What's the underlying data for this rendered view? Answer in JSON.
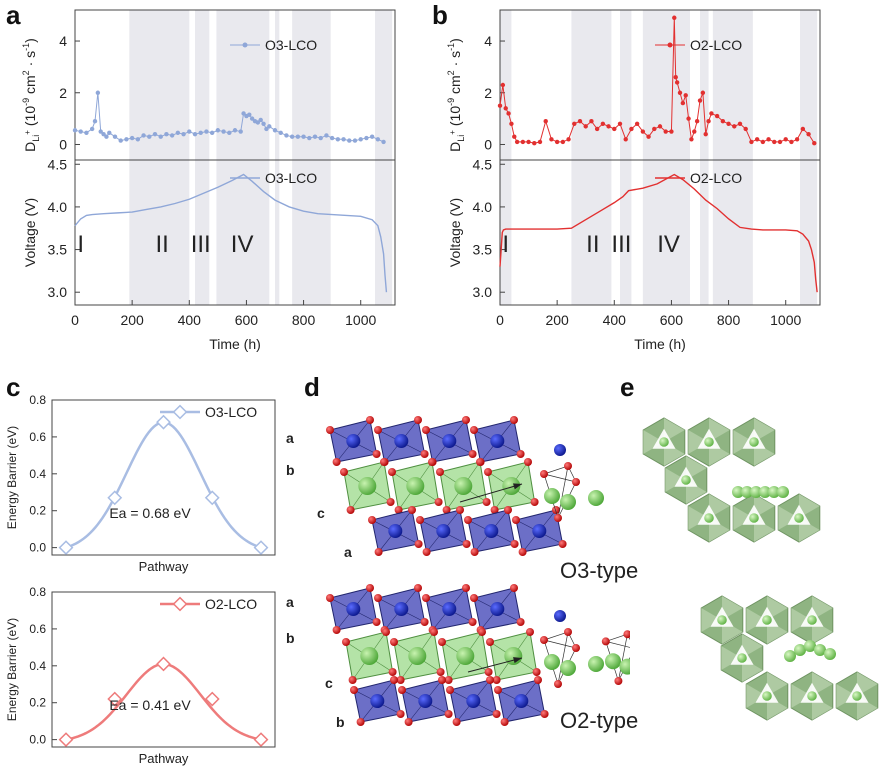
{
  "panels": {
    "a": "a",
    "b": "b",
    "c": "c",
    "d": "d",
    "e": "e"
  },
  "colors": {
    "o3": "#8fa7d8",
    "o2": "#e23030",
    "c_o3": "#a9bde3",
    "c_o2": "#ee7b7b",
    "band": "#e9e9ee",
    "axis": "#444444"
  },
  "chart_data": [
    {
      "id": "a-top",
      "type": "line",
      "legend": "O3-LCO",
      "ylabel_main": "D",
      "ylabel_sub": "Li",
      "ylabel_sup": "+",
      "ylabel_units": "(10",
      "ylabel_exp": "-9",
      "ylabel_rest": "cm",
      "ylabel_sq": "2",
      "ylabel_dot": "· s",
      "ylabel_neg": "-1",
      "ylabel_close": ")",
      "yticks": [
        "0",
        "2",
        "4"
      ],
      "ylim": [
        -0.6,
        5.2
      ],
      "x": [
        0,
        20,
        40,
        60,
        70,
        80,
        90,
        100,
        110,
        120,
        140,
        160,
        180,
        200,
        220,
        240,
        260,
        280,
        300,
        320,
        340,
        360,
        380,
        400,
        420,
        440,
        460,
        480,
        500,
        520,
        540,
        560,
        580,
        590,
        600,
        610,
        620,
        630,
        640,
        650,
        660,
        670,
        680,
        700,
        720,
        740,
        760,
        780,
        800,
        820,
        840,
        860,
        880,
        900,
        920,
        940,
        960,
        980,
        1000,
        1020,
        1040,
        1060,
        1080
      ],
      "y": [
        0.55,
        0.5,
        0.45,
        0.6,
        0.9,
        2.0,
        0.5,
        0.4,
        0.3,
        0.45,
        0.3,
        0.15,
        0.2,
        0.25,
        0.2,
        0.35,
        0.3,
        0.4,
        0.3,
        0.4,
        0.35,
        0.45,
        0.4,
        0.5,
        0.4,
        0.45,
        0.5,
        0.45,
        0.55,
        0.5,
        0.45,
        0.55,
        0.5,
        1.2,
        1.1,
        1.15,
        1.0,
        0.9,
        0.85,
        0.95,
        0.8,
        0.6,
        0.7,
        0.55,
        0.45,
        0.35,
        0.3,
        0.3,
        0.3,
        0.25,
        0.3,
        0.25,
        0.35,
        0.25,
        0.2,
        0.2,
        0.15,
        0.15,
        0.2,
        0.25,
        0.3,
        0.2,
        0.1
      ]
    },
    {
      "id": "a-bottom",
      "type": "line",
      "legend": "O3-LCO",
      "ylabel": "Voltage (V)",
      "xlabel": "Time (h)",
      "yticks": [
        "3.0",
        "3.5",
        "4.0",
        "4.5"
      ],
      "xticks": [
        "0",
        "200",
        "400",
        "600",
        "800",
        "1000"
      ],
      "xlim": [
        0,
        1120
      ],
      "ylim": [
        2.85,
        4.55
      ],
      "bands": [
        [
          190,
          400
        ],
        [
          420,
          470
        ],
        [
          495,
          680
        ],
        [
          700,
          715
        ],
        [
          760,
          895
        ],
        [
          1050,
          1110
        ]
      ],
      "stages": [
        {
          "label": "I",
          "x": 20
        },
        {
          "label": "II",
          "x": 305
        },
        {
          "label": "III",
          "x": 440
        },
        {
          "label": "IV",
          "x": 585
        }
      ],
      "x": [
        0,
        20,
        40,
        60,
        100,
        150,
        200,
        250,
        300,
        350,
        400,
        450,
        500,
        550,
        590,
        620,
        660,
        700,
        750,
        800,
        850,
        900,
        950,
        1000,
        1040,
        1060,
        1070,
        1080,
        1085,
        1090
      ],
      "y": [
        3.78,
        3.86,
        3.9,
        3.91,
        3.92,
        3.93,
        3.94,
        3.97,
        4.0,
        4.04,
        4.09,
        4.16,
        4.23,
        4.31,
        4.38,
        4.3,
        4.18,
        4.08,
        4.0,
        3.95,
        3.92,
        3.91,
        3.9,
        3.89,
        3.85,
        3.78,
        3.65,
        3.45,
        3.2,
        3.0
      ]
    },
    {
      "id": "b-top",
      "type": "line",
      "legend": "O2-LCO",
      "ylabel_main": "D",
      "ylabel_sub": "Li",
      "ylabel_sup": "+",
      "ylabel_units": "(10",
      "ylabel_exp": "-9",
      "ylabel_rest": "cm",
      "ylabel_sq": "2",
      "ylabel_dot": "· s",
      "ylabel_neg": "-1",
      "ylabel_close": ")",
      "yticks": [
        "0",
        "2",
        "4"
      ],
      "ylim": [
        -0.6,
        5.2
      ],
      "x": [
        0,
        10,
        20,
        30,
        40,
        50,
        60,
        80,
        100,
        120,
        140,
        160,
        180,
        200,
        220,
        240,
        260,
        280,
        300,
        320,
        340,
        360,
        380,
        400,
        420,
        440,
        460,
        480,
        500,
        520,
        540,
        560,
        580,
        600,
        610,
        615,
        620,
        630,
        640,
        650,
        660,
        670,
        680,
        690,
        700,
        710,
        720,
        730,
        740,
        760,
        780,
        800,
        820,
        840,
        860,
        880,
        900,
        920,
        940,
        960,
        980,
        1000,
        1020,
        1040,
        1060,
        1080,
        1100
      ],
      "y": [
        1.5,
        2.3,
        1.4,
        1.2,
        0.8,
        0.3,
        0.1,
        0.1,
        0.1,
        0.05,
        0.1,
        0.9,
        0.2,
        0.1,
        0.1,
        0.2,
        0.8,
        0.9,
        0.7,
        0.9,
        0.6,
        0.8,
        0.7,
        0.6,
        0.8,
        0.2,
        0.6,
        0.8,
        0.5,
        0.3,
        0.6,
        0.7,
        0.5,
        0.5,
        4.9,
        2.6,
        2.4,
        2.0,
        1.6,
        1.9,
        1.0,
        0.2,
        0.5,
        0.9,
        1.7,
        2.0,
        0.4,
        0.9,
        1.2,
        1.1,
        0.9,
        0.8,
        0.7,
        0.8,
        0.6,
        0.1,
        0.2,
        0.1,
        0.2,
        0.1,
        0.1,
        0.2,
        0.1,
        0.2,
        0.6,
        0.4,
        0.05
      ]
    },
    {
      "id": "b-bottom",
      "type": "line",
      "legend": "O2-LCO",
      "ylabel": "Voltage (V)",
      "xlabel": "Time (h)",
      "yticks": [
        "3.0",
        "3.5",
        "4.0",
        "4.5"
      ],
      "xticks": [
        "0",
        "200",
        "400",
        "600",
        "800",
        "1000"
      ],
      "xlim": [
        0,
        1120
      ],
      "ylim": [
        2.85,
        4.55
      ],
      "bands": [
        [
          0,
          40
        ],
        [
          250,
          390
        ],
        [
          420,
          460
        ],
        [
          500,
          665
        ],
        [
          700,
          730
        ],
        [
          745,
          885
        ],
        [
          1050,
          1110
        ]
      ],
      "stages": [
        {
          "label": "I",
          "x": 20
        },
        {
          "label": "II",
          "x": 325
        },
        {
          "label": "III",
          "x": 425
        },
        {
          "label": "IV",
          "x": 590
        }
      ],
      "x": [
        0,
        8,
        12,
        20,
        40,
        80,
        150,
        200,
        250,
        300,
        350,
        400,
        430,
        450,
        500,
        550,
        610,
        640,
        680,
        720,
        760,
        800,
        840,
        880,
        920,
        960,
        1000,
        1040,
        1060,
        1080,
        1090,
        1100,
        1105,
        1110
      ],
      "y": [
        3.3,
        3.7,
        3.73,
        3.74,
        3.74,
        3.74,
        3.74,
        3.74,
        3.75,
        3.85,
        3.95,
        4.05,
        4.12,
        4.19,
        4.22,
        4.27,
        4.38,
        4.32,
        4.21,
        4.08,
        3.98,
        3.86,
        3.76,
        3.74,
        3.73,
        3.73,
        3.73,
        3.72,
        3.68,
        3.6,
        3.5,
        3.35,
        3.15,
        3.0
      ]
    },
    {
      "id": "c-top",
      "type": "line",
      "legend": "O3-LCO",
      "ylabel": "Energy Barrier (eV)",
      "xlabel": "Pathway",
      "annotation": "Ea = 0.68 eV",
      "yticks": [
        "0.0",
        "0.2",
        "0.4",
        "0.6",
        "0.8"
      ],
      "ylim": [
        -0.04,
        0.8
      ],
      "x": [
        0,
        1,
        2,
        3,
        4
      ],
      "y": [
        0.0,
        0.27,
        0.68,
        0.27,
        0.0
      ]
    },
    {
      "id": "c-bottom",
      "type": "line",
      "legend": "O2-LCO",
      "ylabel": "Energy Barrier (eV)",
      "xlabel": "Pathway",
      "annotation": "Ea = 0.41 eV",
      "yticks": [
        "0.0",
        "0.2",
        "0.4",
        "0.6",
        "0.8"
      ],
      "ylim": [
        -0.04,
        0.8
      ],
      "x": [
        0,
        1,
        2,
        3,
        4
      ],
      "y": [
        0.0,
        0.22,
        0.41,
        0.22,
        0.0
      ]
    }
  ],
  "structures": {
    "top_axes": [
      "a",
      "b",
      "c",
      "a"
    ],
    "bottom_axes": [
      "a",
      "b",
      "c",
      "b"
    ],
    "top_type": "O3-type",
    "bottom_type": "O2-type"
  }
}
